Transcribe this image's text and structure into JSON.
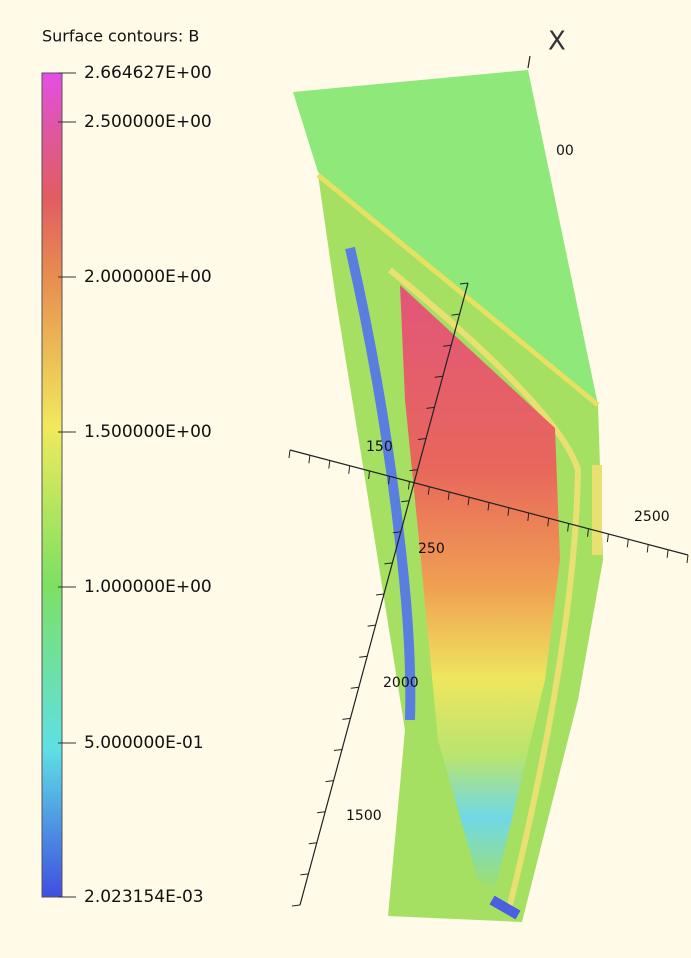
{
  "legend": {
    "title": "Surface contours: B",
    "labels": [
      "2.664627E+00",
      "2.500000E+00",
      "2.000000E+00",
      "1.500000E+00",
      "1.000000E+00",
      "5.000000E-01",
      "2.023154E-03"
    ]
  },
  "axes": {
    "axis_name": "X",
    "tick_labels": [
      "00",
      "150",
      "2500",
      "250",
      "2000",
      "1500"
    ]
  }
}
